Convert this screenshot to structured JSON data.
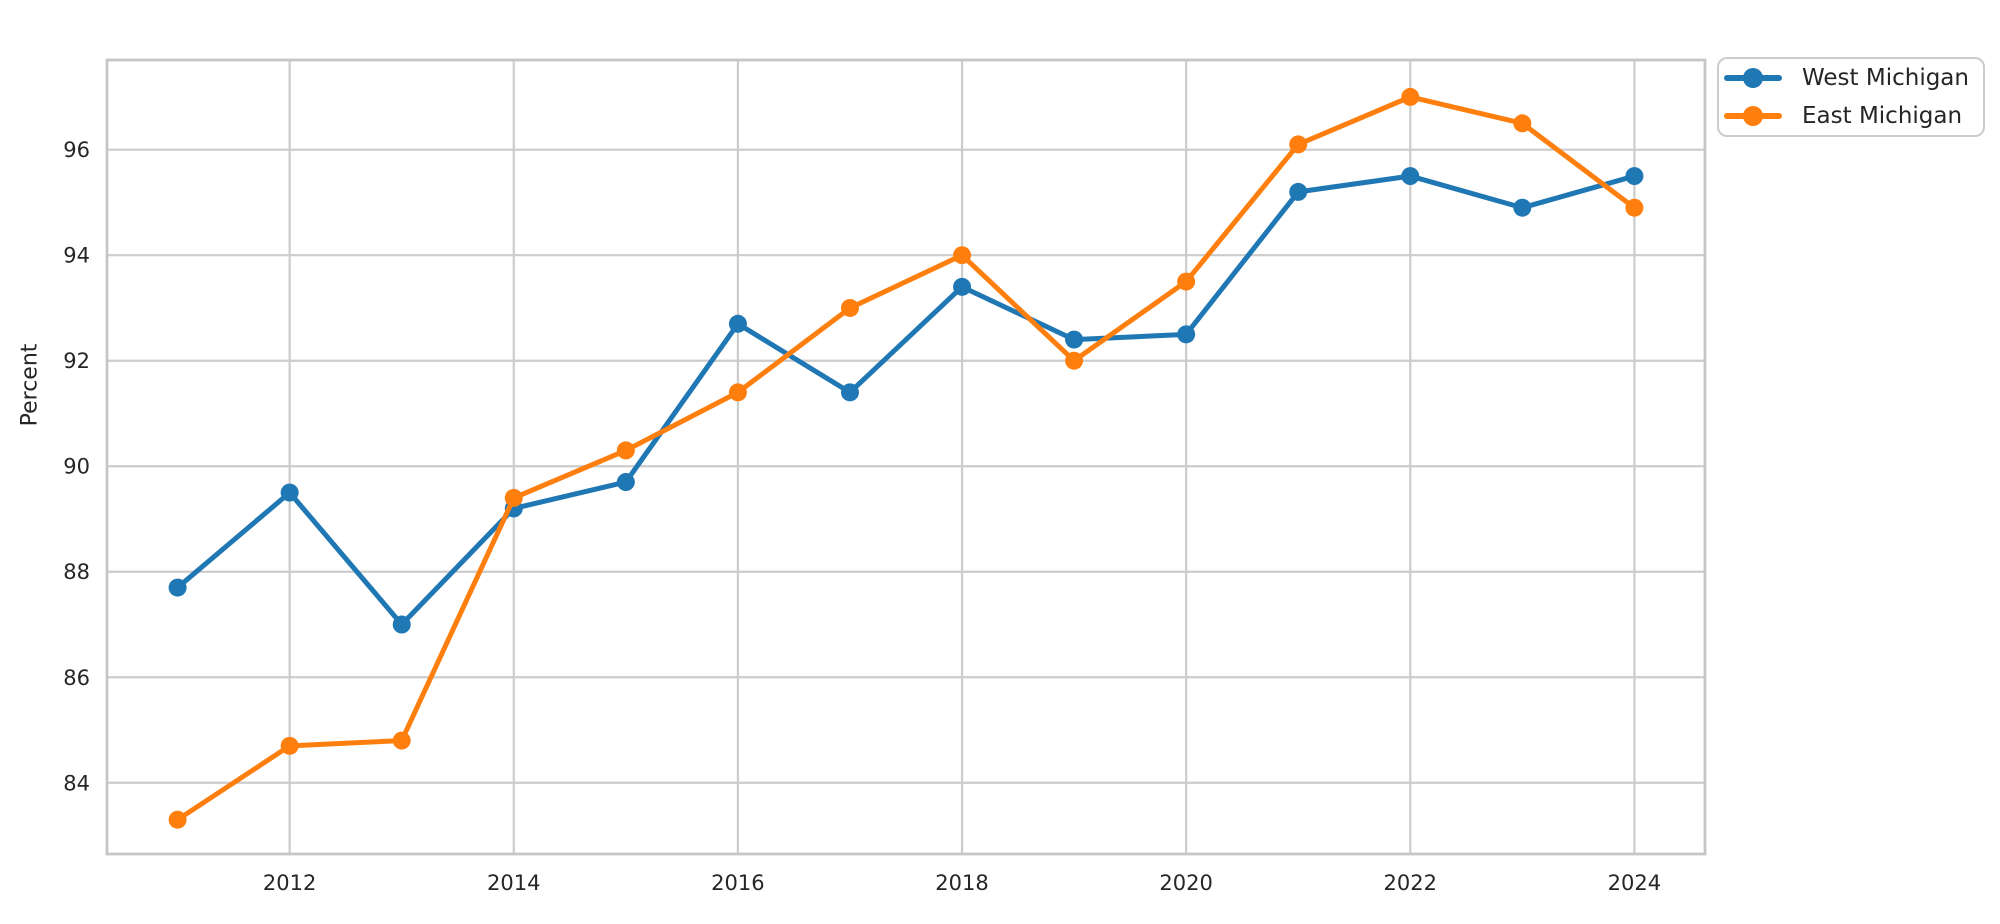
{
  "figure": {
    "background": "#ffffff"
  },
  "chart_data": {
    "type": "line",
    "title": "",
    "xlabel": "",
    "ylabel": "Percent",
    "x": [
      2011,
      2012,
      2013,
      2014,
      2015,
      2016,
      2017,
      2018,
      2019,
      2020,
      2021,
      2022,
      2023,
      2024
    ],
    "series": [
      {
        "name": "West Michigan",
        "color": "#1f77b4",
        "values": [
          87.7,
          89.5,
          87.0,
          89.2,
          89.7,
          92.7,
          91.4,
          93.4,
          92.4,
          92.5,
          95.2,
          95.5,
          94.9,
          95.5
        ]
      },
      {
        "name": "East Michigan",
        "color": "#ff7f0e",
        "values": [
          83.3,
          84.7,
          84.8,
          89.4,
          90.3,
          91.4,
          93.0,
          94.0,
          92.0,
          93.5,
          96.1,
          97.0,
          96.5,
          94.9
        ]
      }
    ],
    "xticks": [
      2012,
      2014,
      2016,
      2018,
      2020,
      2022,
      2024
    ],
    "yticks": [
      84,
      86,
      88,
      90,
      92,
      94,
      96
    ],
    "xlim": [
      2010.37,
      2024.63
    ],
    "ylim": [
      82.65,
      97.7
    ],
    "grid": true,
    "legend_position": "upper-right-outside",
    "colors": {
      "grid": "#cccccc",
      "spine": "#c6c6c6",
      "tick_label": "#262626"
    }
  }
}
